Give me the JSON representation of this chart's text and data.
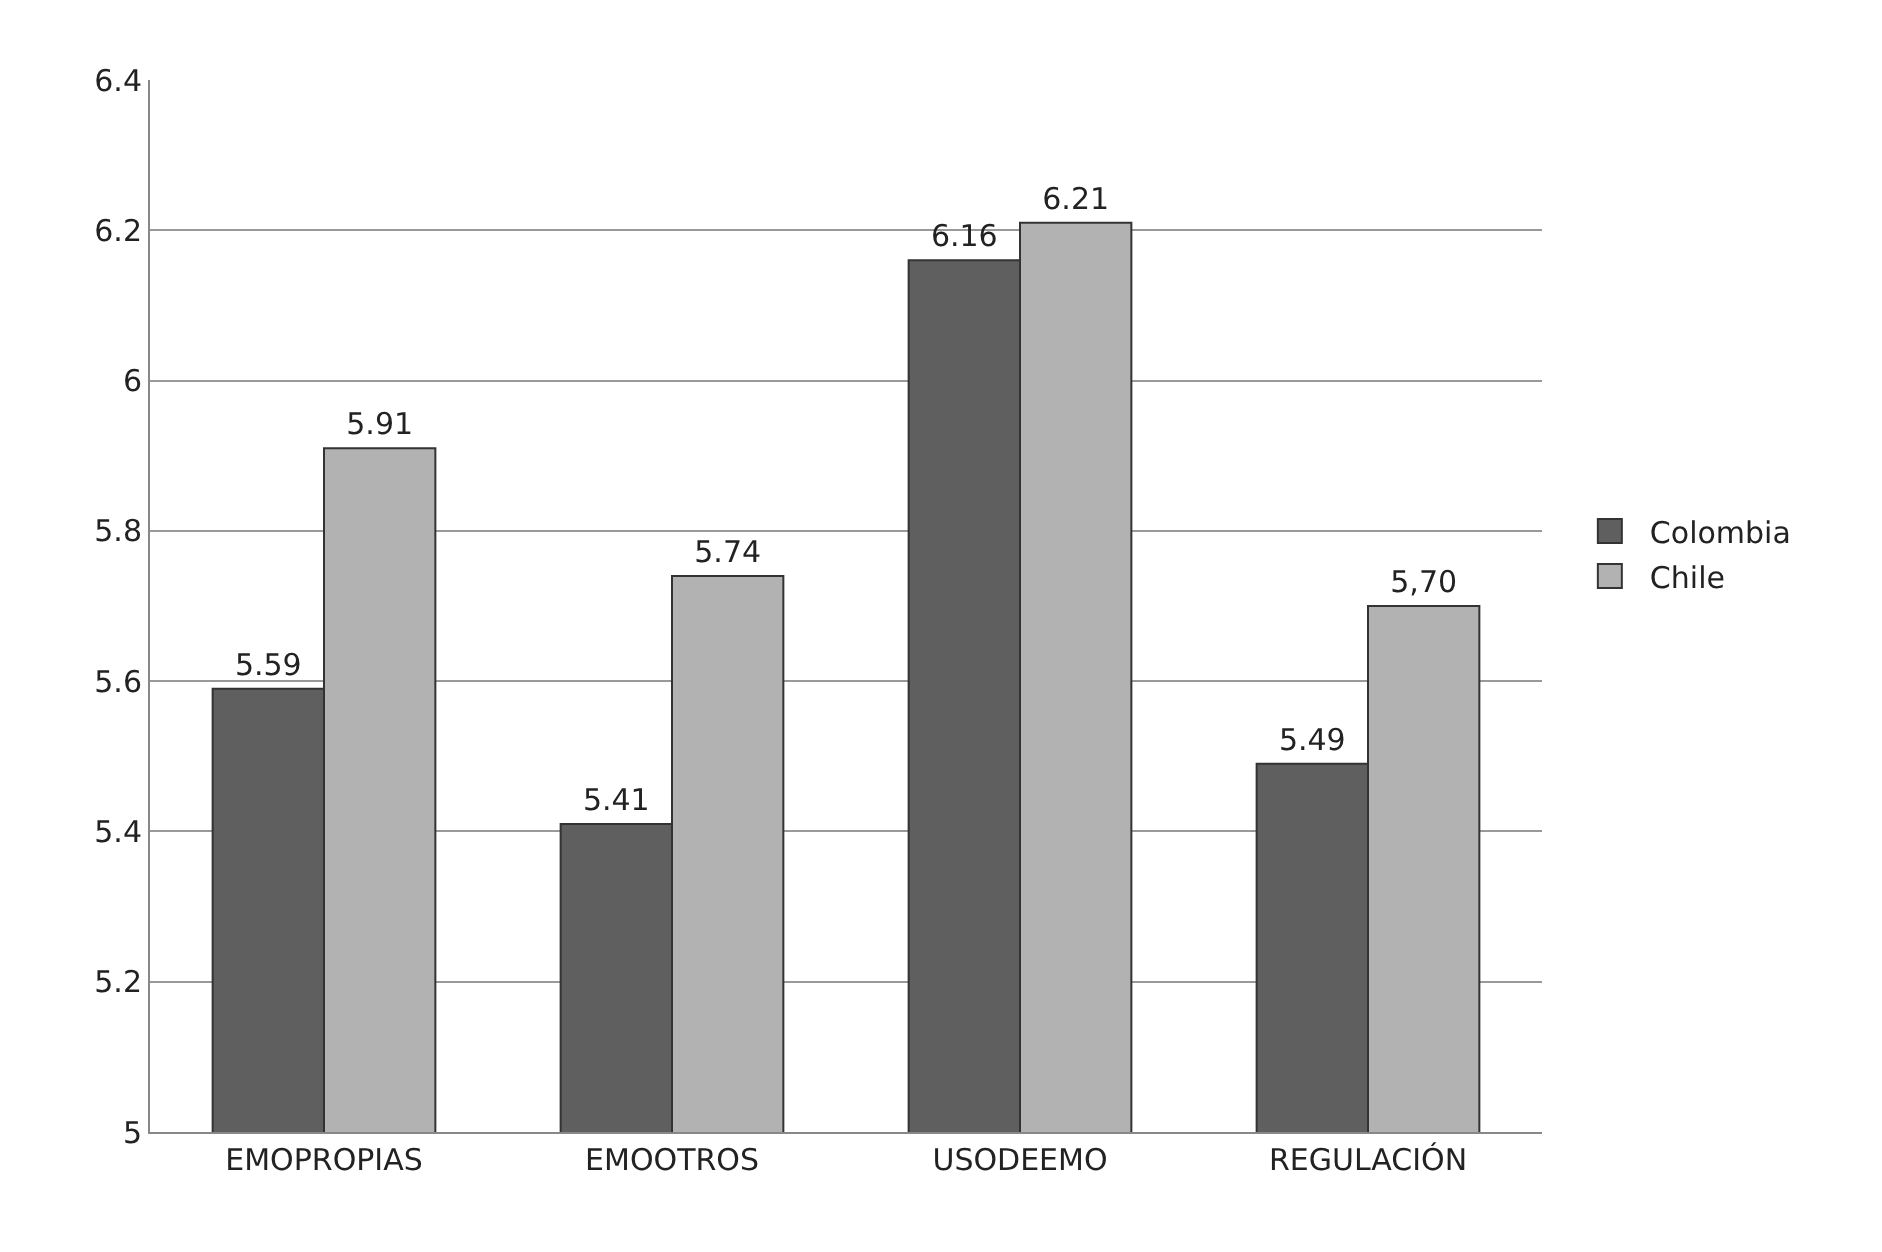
{
  "chart_data": {
    "type": "bar",
    "categories": [
      "EMOPROPIAS",
      "EMOOTROS",
      "USODEEMO",
      "REGULACIÓN"
    ],
    "series": [
      {
        "name": "Colombia",
        "color": "#5f5f5f",
        "values": [
          5.59,
          5.41,
          6.16,
          5.49
        ],
        "value_labels": [
          "5.59",
          "5.41",
          "6.16",
          "5.49"
        ]
      },
      {
        "name": "Chile",
        "color": "#b2b2b2",
        "values": [
          5.91,
          5.74,
          6.21,
          5.7
        ],
        "value_labels": [
          "5.91",
          "5.74",
          "6.21",
          "5,70"
        ]
      }
    ],
    "ylim": [
      5,
      6.4
    ],
    "yticks": [
      5,
      5.2,
      5.4,
      5.6,
      5.8,
      6,
      6.2,
      6.4
    ],
    "grid": "y",
    "legend": "right"
  }
}
